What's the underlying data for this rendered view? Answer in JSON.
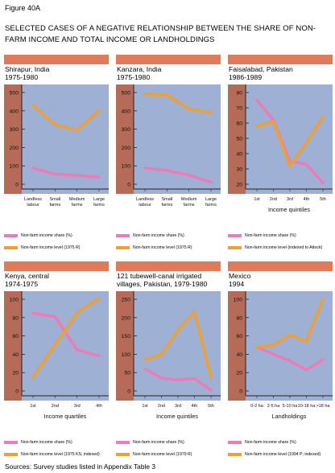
{
  "figure_label": "Figure 40A",
  "figure_title": "SELECTED CASES OF A NEGATIVE RELATIONSHIP BETWEEN THE SHARE OF NON-FARM INCOME AND TOTAL INCOME OR LANDHOLDINGS",
  "source": "Sources: Survey studies listed in Appendix Table 3",
  "colors": {
    "band": "#e07a5a",
    "left_axis_bar": "#b56b57",
    "plot_bg": "#9eb0d3",
    "share_line": "#f07ab8",
    "level_line": "#f0a030",
    "axis_line": "#222222"
  },
  "chart_data": [
    {
      "type": "line",
      "title_lines": [
        "Shirapur, India",
        "1975-1980"
      ],
      "ylim": [
        0,
        500
      ],
      "yticks": [
        "0",
        "100",
        "200",
        "300",
        "400",
        "500"
      ],
      "categories": [
        [
          "Landless",
          "labour"
        ],
        [
          "Small",
          "farms"
        ],
        [
          "Medium",
          "farms"
        ],
        [
          "Large",
          "farms"
        ]
      ],
      "xlabel": "",
      "series": [
        {
          "name": "Non-farm income share (%)",
          "role": "share",
          "values": [
            88,
            55,
            48,
            38
          ]
        },
        {
          "name": "Non-farm income level (1975 R)",
          "role": "level",
          "values": [
            430,
            325,
            295,
            400
          ]
        }
      ],
      "grid": false
    },
    {
      "type": "line",
      "title_lines": [
        "Kanzara, India",
        "1975-1980"
      ],
      "ylim": [
        0,
        500
      ],
      "yticks": [
        "0",
        "100",
        "200",
        "300",
        "400",
        "500"
      ],
      "categories": [
        [
          "Landless",
          "labour"
        ],
        [
          "Small",
          "farms"
        ],
        [
          "Medium",
          "farms"
        ],
        [
          "Large",
          "farms"
        ]
      ],
      "xlabel": "",
      "series": [
        {
          "name": "Non-farm income share (%)",
          "role": "share",
          "values": [
            88,
            75,
            50,
            12
          ]
        },
        {
          "name": "Non-farm income level (1975 R)",
          "role": "level",
          "values": [
            492,
            488,
            410,
            392
          ]
        }
      ],
      "grid": false
    },
    {
      "type": "line",
      "title_lines": [
        "Faisalabad, Pakistan",
        "1986-1989"
      ],
      "ylim": [
        20,
        80
      ],
      "yticks": [
        "20",
        "30",
        "40",
        "50",
        "60",
        "70",
        "80"
      ],
      "categories": [
        [
          "1st"
        ],
        [
          "2nd"
        ],
        [
          "3rd"
        ],
        [
          "4th"
        ],
        [
          "5th"
        ]
      ],
      "xlabel": "Income quintiles",
      "series": [
        {
          "name": "Non-farm income share (%)",
          "role": "share",
          "values": [
            75,
            62,
            35,
            33,
            21
          ]
        },
        {
          "name": "Non-farm income level (indexed to Attock)",
          "role": "level",
          "values": [
            58,
            61,
            32,
            47,
            64
          ]
        }
      ],
      "grid": false
    },
    {
      "type": "line",
      "title_lines": [
        "Kenya, central",
        "1974-1975"
      ],
      "ylim": [
        0,
        100
      ],
      "yticks": [
        "0",
        "20",
        "40",
        "60",
        "80",
        "100"
      ],
      "categories": [
        [
          "1st"
        ],
        [
          "2nd"
        ],
        [
          "3rd"
        ],
        [
          "4th"
        ]
      ],
      "xlabel": "Income quartiles",
      "series": [
        {
          "name": "Non-farm income share (%)",
          "role": "share",
          "values": [
            85,
            81,
            45,
            38
          ]
        },
        {
          "name": "Non-farm income level (1975 KS; indexed)",
          "role": "level",
          "values": [
            15,
            50,
            85,
            101
          ]
        }
      ],
      "grid": false
    },
    {
      "type": "line",
      "title_lines": [
        "121 tubewell-canal irrigated",
        "villages, Pakistan, 1979-1980"
      ],
      "ylim": [
        0,
        250
      ],
      "yticks": [
        "0",
        "50",
        "100",
        "150",
        "200",
        "250"
      ],
      "categories": [
        [
          "1st"
        ],
        [
          "2nd"
        ],
        [
          "3rd"
        ],
        [
          "4th"
        ],
        [
          "5th"
        ]
      ],
      "xlabel": "Income quintiles",
      "series": [
        {
          "name": "Non-farm income share (%)",
          "role": "share",
          "values": [
            60,
            35,
            30,
            34,
            2
          ]
        },
        {
          "name": "Non-farm income level (1979 R)",
          "role": "level",
          "values": [
            85,
            100,
            165,
            215,
            38
          ]
        }
      ],
      "grid": false
    },
    {
      "type": "line",
      "title_lines": [
        "Mexico",
        "1994"
      ],
      "ylim": [
        0,
        100
      ],
      "yticks": [
        "0",
        "20",
        "40",
        "60",
        "80",
        "100"
      ],
      "categories": [
        [
          "0-2 ha"
        ],
        [
          "2-5 ha"
        ],
        [
          "5-10 ha"
        ],
        [
          "10-18 ha"
        ],
        [
          ">18 ha"
        ]
      ],
      "xlabel": "Landholdings",
      "series": [
        {
          "name": "Non-farm income share (%)",
          "role": "share",
          "values": [
            48,
            40,
            33,
            23,
            34
          ]
        },
        {
          "name": "Non-farm income level (1994 P; indexed)",
          "role": "level",
          "values": [
            48,
            50,
            61,
            54,
            100
          ]
        }
      ],
      "grid": false
    }
  ]
}
